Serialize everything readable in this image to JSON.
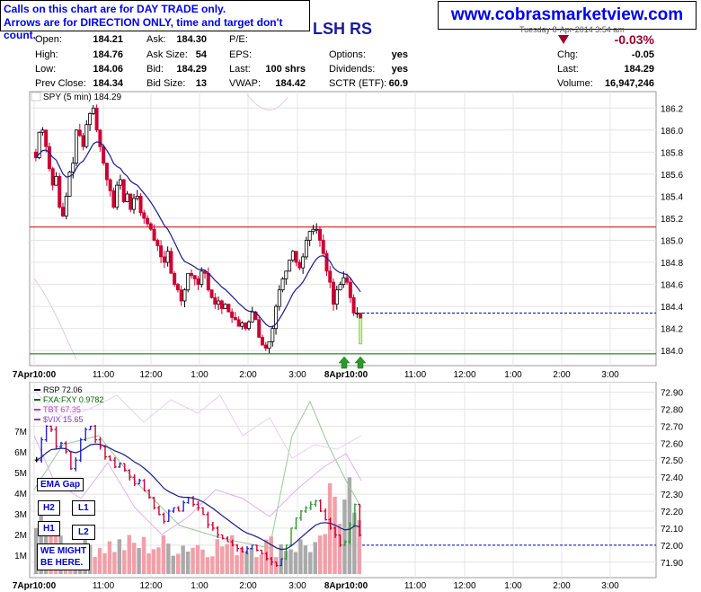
{
  "notice": {
    "line1": "Calls on this chart are for DAY TRADE only.",
    "line2": "Arrows are for DIRECTION ONLY, time and target don't count."
  },
  "watermark": "www.cobrasmarketview.com",
  "symbol_title": "LSH RS",
  "date_line": "Tuesday 8-Apr-2014 3:54 am",
  "quote": {
    "open_label": "Open:",
    "open": "184.21",
    "high_label": "High:",
    "high": "184.76",
    "low_label": "Low:",
    "low": "184.06",
    "prev_label": "Prev Close:",
    "prev": "184.34",
    "ask_label": "Ask:",
    "ask": "184.30",
    "asksize_label": "Ask Size:",
    "asksize": "54",
    "bid_label": "Bid:",
    "bid": "184.29",
    "bidsize_label": "Bid Size:",
    "bidsize": "13",
    "pe_label": "P/E:",
    "pe": "",
    "eps_label": "EPS:",
    "eps": "",
    "last_label": "Last:",
    "last_shrs": "100 shrs",
    "vwap_label": "VWAP:",
    "vwap": "184.42",
    "options_label": "Options:",
    "options": "yes",
    "div_label": "Dividends:",
    "dividends": "yes",
    "sctr_label": "SCTR (ETF):",
    "sctr": "60.9",
    "pct_change": "-0.03%",
    "chg_label": "Chg:",
    "chg": "-0.05",
    "last2_label": "Last:",
    "last2": "184.29",
    "vol_label": "Volume:",
    "volume": "16,947,246"
  },
  "annotations": {
    "ema_gap": "EMA Gap",
    "h2": "H2",
    "l1": "L1",
    "h1": "H1",
    "l2": "L2",
    "might_line1": "WE MIGHT",
    "might_line2": "BE HERE."
  },
  "colors": {
    "up": "#000000",
    "down": "#cc0033",
    "ema": "#1a1a8c",
    "resistance": "#cc0000",
    "support": "#006600",
    "current": "#0000cc",
    "arrow": "#2a9a2a",
    "rsp": "#000000",
    "fxa": "#339933",
    "tbt": "#cc33cc",
    "vix": "#c8a0e0",
    "vol_up": "#aaaaaa",
    "vol_down": "#f0a0a8"
  },
  "chart_data": [
    {
      "type": "line",
      "title": "SPY (5 min) 184.29",
      "ylim": [
        183.92,
        186.3
      ],
      "y_ticks": [
        "186.2",
        "186.0",
        "185.8",
        "185.6",
        "185.4",
        "185.2",
        "185.0",
        "184.8",
        "184.6",
        "184.4",
        "184.2",
        "184.0"
      ],
      "x_ticks": [
        "7Apr10:00",
        "11:00",
        "12:00",
        "1:00",
        "2:00",
        "3:00",
        "8Apr10:00",
        "11:00",
        "12:00",
        "1:00",
        "2:00",
        "3:00"
      ],
      "series": [
        {
          "name": "SPY (5 min) 184.29",
          "values": [
            185.75,
            185.98,
            186.0,
            185.85,
            185.65,
            185.5,
            185.58,
            185.3,
            185.22,
            185.4,
            185.62,
            185.7,
            186.0,
            185.95,
            185.85,
            186.05,
            186.15,
            186.2,
            186.0,
            185.85,
            185.7,
            185.55,
            185.45,
            185.3,
            185.5,
            185.55,
            185.35,
            185.42,
            185.28,
            185.38,
            185.4,
            185.25,
            185.2,
            185.15,
            185.1,
            185.0,
            184.95,
            184.85,
            184.8,
            184.9,
            184.7,
            184.6,
            184.55,
            184.45,
            184.55,
            184.7,
            184.68,
            184.65,
            184.6,
            184.72,
            184.7,
            184.55,
            184.48,
            184.42,
            184.45,
            184.38,
            184.42,
            184.35,
            184.3,
            184.28,
            184.22,
            184.25,
            184.2,
            184.26,
            184.35,
            184.28,
            184.12,
            184.05,
            184.02,
            184.08,
            184.2,
            184.4,
            184.55,
            184.65,
            184.72,
            184.82,
            184.9,
            184.8,
            184.75,
            184.85,
            185.0,
            185.08,
            185.1,
            185.1,
            185.0,
            184.88,
            184.72,
            184.62,
            184.42,
            184.55,
            184.6,
            184.66,
            184.62,
            184.48,
            184.34,
            184.34,
            184.29
          ]
        }
      ],
      "levels": [
        {
          "value": 185.12,
          "color": "resistance"
        },
        {
          "value": 183.97,
          "color": "support"
        },
        {
          "value": 184.34,
          "color": "current"
        }
      ]
    },
    {
      "type": "line",
      "title": "RSP 72.06",
      "legend": [
        "RSP 72.06",
        "FXA:FXY 0.9782",
        "TBT 67.35",
        "$VIX 15.65"
      ],
      "ylim": [
        71.83,
        72.94
      ],
      "y_ticks": [
        "72.90",
        "72.80",
        "72.70",
        "72.60",
        "72.50",
        "72.40",
        "72.30",
        "72.20",
        "72.10",
        "72.00",
        "71.90"
      ],
      "volume_ticks": [
        "7M",
        "6M",
        "5M",
        "4M",
        "3M",
        "2M",
        "1M"
      ],
      "x_ticks": [
        "7Apr10:00",
        "11:00",
        "12:00",
        "1:00",
        "2:00",
        "3:00",
        "8Apr10:00",
        "11:00",
        "12:00",
        "1:00",
        "2:00",
        "3:00"
      ],
      "series": [
        {
          "name": "RSP 72.06",
          "values": [
            72.5,
            72.62,
            72.7,
            72.68,
            72.58,
            72.6,
            72.55,
            72.45,
            72.5,
            72.62,
            72.68,
            72.7,
            72.62,
            72.58,
            72.52,
            72.5,
            72.46,
            72.48,
            72.44,
            72.4,
            72.36,
            72.38,
            72.32,
            72.28,
            72.22,
            72.18,
            72.14,
            72.2,
            72.22,
            72.2,
            72.25,
            72.28,
            72.24,
            72.22,
            72.18,
            72.12,
            72.1,
            72.06,
            72.04,
            72.02,
            72.0,
            71.98,
            71.96,
            71.98,
            72.0,
            71.97,
            71.95,
            71.92,
            71.9,
            71.88,
            71.92,
            72.0,
            72.1,
            72.16,
            72.2,
            72.22,
            72.24,
            72.26,
            72.2,
            72.15,
            72.1,
            72.06,
            72.0,
            72.02,
            72.12,
            72.24,
            72.06
          ]
        }
      ],
      "levels": [
        {
          "value": 72.0,
          "color": "current"
        }
      ]
    }
  ]
}
